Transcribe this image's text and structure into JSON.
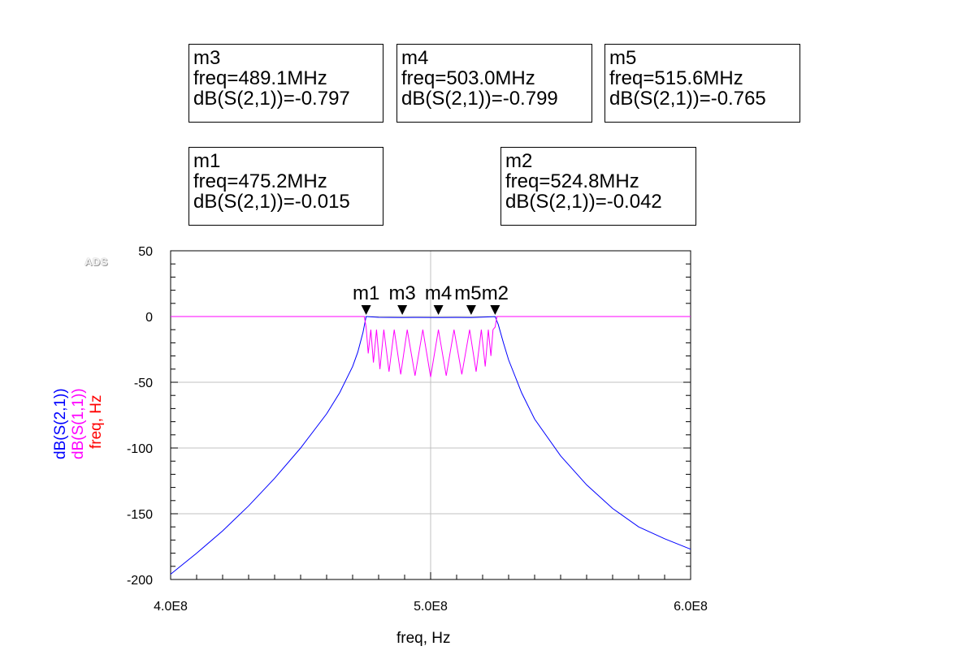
{
  "chart_data": {
    "type": "line",
    "xlabel": "freq, Hz",
    "ylabels": [
      {
        "text": "dB(S(2,1))",
        "color": "#0000ff"
      },
      {
        "text": "dB(S(1,1))",
        "color": "#ff00ff"
      },
      {
        "text": "freq, Hz",
        "color": "#ff0000"
      }
    ],
    "xlim": [
      400000000,
      600000000
    ],
    "ylim": [
      -200,
      50
    ],
    "x_ticks": [
      "4.0E8",
      "5.0E8",
      "6.0E8"
    ],
    "y_ticks": [
      "50",
      "0",
      "-50",
      "-100",
      "-150",
      "-200"
    ],
    "grid": true,
    "watermark": "ADS",
    "series": [
      {
        "name": "dB(S(2,1))",
        "color": "#0000ff",
        "x": [
          400000000,
          410000000,
          420000000,
          430000000,
          440000000,
          450000000,
          460000000,
          465000000,
          470000000,
          472000000,
          474000000,
          475200000,
          480000000,
          489100000,
          495000000,
          503000000,
          510000000,
          515600000,
          520000000,
          524800000,
          526000000,
          528000000,
          530000000,
          535000000,
          540000000,
          550000000,
          560000000,
          570000000,
          580000000,
          590000000,
          600000000
        ],
        "values": [
          -196,
          -180,
          -163,
          -144,
          -123,
          -100,
          -74,
          -58,
          -38,
          -27,
          -12,
          -0.015,
          -0.6,
          -0.797,
          -0.7,
          -0.799,
          -0.7,
          -0.765,
          -0.5,
          -0.042,
          -6,
          -20,
          -33,
          -58,
          -78,
          -106,
          -128,
          -146,
          -160,
          -169,
          -177
        ]
      },
      {
        "name": "dB(S(1,1))",
        "color": "#ff00ff",
        "x": [
          400000000,
          474500000,
          475200000,
          476000000,
          477000000,
          478000000,
          479200000,
          480500000,
          482000000,
          484000000,
          486000000,
          488500000,
          491000000,
          494000000,
          497000000,
          500000000,
          503000000,
          506000000,
          509000000,
          512000000,
          515000000,
          517500000,
          519500000,
          521000000,
          522200000,
          523200000,
          524000000,
          524800000,
          525500000,
          600000000
        ],
        "values": [
          0,
          0,
          -8,
          -28,
          -10,
          -35,
          -10,
          -40,
          -10,
          -42,
          -10,
          -44,
          -10,
          -45,
          -10,
          -46,
          -10,
          -45,
          -10,
          -44,
          -10,
          -42,
          -10,
          -38,
          -10,
          -30,
          -10,
          -8,
          0,
          0
        ]
      }
    ],
    "markers": [
      {
        "name": "m1",
        "freq": 475200000,
        "y": 0
      },
      {
        "name": "m3",
        "freq": 489100000,
        "y": 0
      },
      {
        "name": "m4",
        "freq": 503000000,
        "y": 0
      },
      {
        "name": "m5",
        "freq": 515600000,
        "y": 0
      },
      {
        "name": "m2",
        "freq": 524800000,
        "y": 0
      }
    ],
    "marker_boxes": {
      "m3": {
        "name": "m3",
        "freq": "freq=489.1MHz",
        "val": "dB(S(2,1))=-0.797"
      },
      "m4": {
        "name": "m4",
        "freq": "freq=503.0MHz",
        "val": "dB(S(2,1))=-0.799"
      },
      "m5": {
        "name": "m5",
        "freq": "freq=515.6MHz",
        "val": "dB(S(2,1))=-0.765"
      },
      "m1": {
        "name": "m1",
        "freq": "freq=475.2MHz",
        "val": "dB(S(2,1))=-0.015"
      },
      "m2": {
        "name": "m2",
        "freq": "freq=524.8MHz",
        "val": "dB(S(2,1))=-0.042"
      }
    }
  }
}
